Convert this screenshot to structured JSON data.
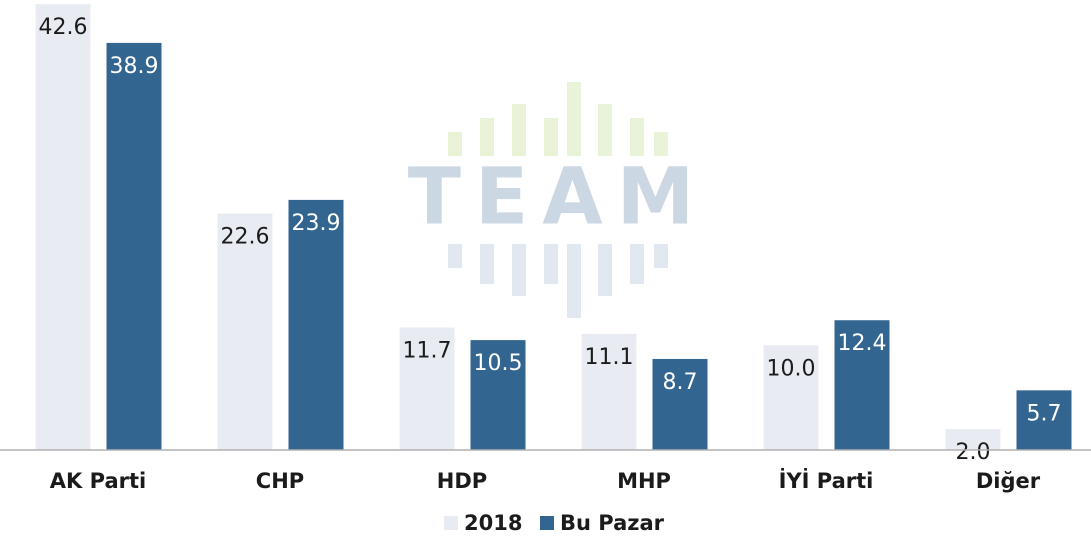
{
  "chart_data": {
    "type": "bar",
    "watermark": "TEAM",
    "categories": [
      "AK Parti",
      "CHP",
      "HDP",
      "MHP",
      "İYİ Parti",
      "Diğer"
    ],
    "series": [
      {
        "name": "2018",
        "color": "#e8ecf2",
        "values": [
          42.6,
          22.6,
          11.7,
          11.1,
          10.0,
          2.0
        ],
        "value_labels": [
          "42.6",
          "22.6",
          "11.7",
          "11.1",
          "10.0",
          "2.0"
        ]
      },
      {
        "name": "Bu Pazar",
        "color": "#336591",
        "values": [
          38.9,
          23.9,
          10.5,
          8.7,
          12.4,
          5.7
        ],
        "value_labels": [
          "38.9",
          "23.9",
          "10.5",
          "8.7",
          "12.4",
          "5.7"
        ]
      }
    ],
    "ylim": [
      0,
      43
    ]
  }
}
